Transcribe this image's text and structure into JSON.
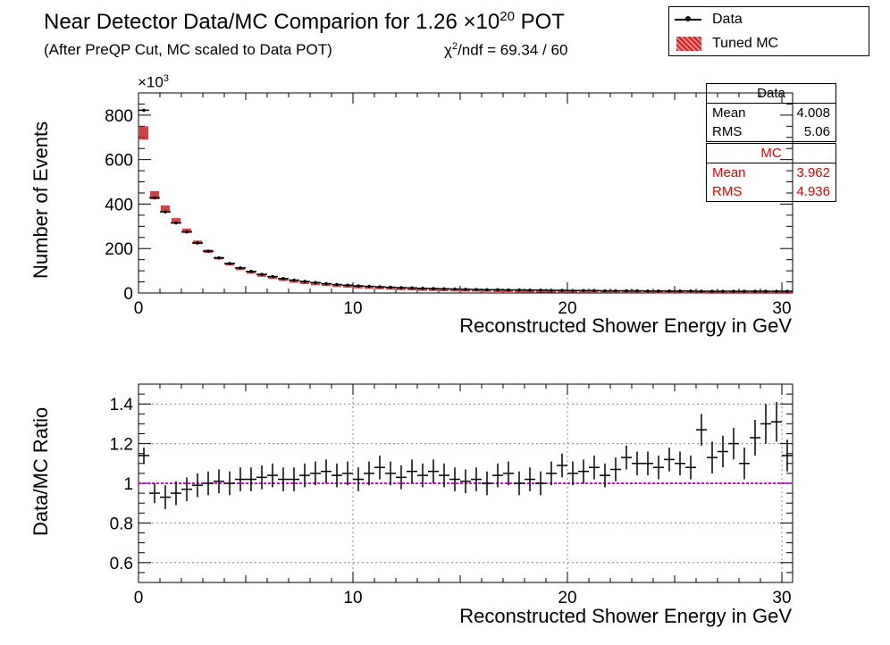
{
  "header": {
    "title_main": "Near Detector Data/MC Comparion for 1.26 ×10",
    "title_exp": "20",
    "title_tail": " POT",
    "subtitle": "(After PreQP Cut, MC scaled to Data POT)",
    "chi_prefix": "χ",
    "chi_sup": "2",
    "chi_text": "/ndf = 69.34 / 60"
  },
  "legend": {
    "data_label": "Data",
    "mc_label": "Tuned MC"
  },
  "stats": {
    "data": {
      "title": "Data",
      "mean_label": "Mean",
      "mean": "4.008",
      "rms_label": "RMS",
      "rms": "5.06"
    },
    "mc": {
      "title": "MC",
      "mean_label": "Mean",
      "mean": "3.962",
      "rms_label": "RMS",
      "rms": "4.936"
    }
  },
  "colors": {
    "data": "#000000",
    "mc": "#cc2222",
    "ratio_line": "#e000e0",
    "grid": "#888888"
  },
  "chart_data": [
    {
      "type": "bar",
      "title": "",
      "xlabel": "Reconstructed Shower Energy in GeV",
      "ylabel": "Number of Events",
      "y_multiplier": "×10",
      "y_multiplier_exp": "3",
      "xlim": [
        0,
        30.5
      ],
      "ylim": [
        0,
        900
      ],
      "xticks": [
        0,
        10,
        20,
        30
      ],
      "yticks": [
        0,
        200,
        400,
        600,
        800
      ],
      "bin_width": 0.5,
      "series": [
        {
          "name": "Data",
          "x": [
            0.25,
            0.75,
            1.25,
            1.75,
            2.25,
            2.75,
            3.25,
            3.75,
            4.25,
            4.75,
            5.25,
            5.75,
            6.25,
            6.75,
            7.25,
            7.75,
            8.25,
            8.75,
            9.25,
            9.75,
            10.25,
            10.75,
            11.25,
            11.75,
            12.25,
            12.75,
            13.25,
            13.75,
            14.25,
            14.75,
            15.25,
            15.75,
            16.25,
            16.75,
            17.25,
            17.75,
            18.25,
            18.75,
            19.25,
            19.75,
            20.25,
            20.75,
            21.25,
            21.75,
            22.25,
            22.75,
            23.25,
            23.75,
            24.25,
            24.75,
            25.25,
            25.75,
            26.25,
            26.75,
            27.25,
            27.75,
            28.25,
            28.75,
            29.25,
            29.75,
            30.25
          ],
          "values": [
            822,
            428,
            365,
            315,
            275,
            225,
            188,
            158,
            133,
            113,
            97,
            84,
            74,
            65,
            58,
            52,
            47,
            42,
            38,
            35,
            32,
            30,
            28,
            26,
            24,
            23,
            21,
            20,
            19,
            18,
            17,
            16,
            15,
            15,
            14,
            14,
            13,
            13,
            12,
            12,
            11,
            11,
            11,
            10,
            10,
            10,
            10,
            9,
            9,
            9,
            9,
            9,
            8,
            8,
            8,
            8,
            8,
            8,
            8,
            8,
            8
          ]
        },
        {
          "name": "Tuned MC",
          "x": [
            0.25,
            0.75,
            1.25,
            1.75,
            2.25,
            2.75,
            3.25,
            3.75,
            4.25,
            4.75,
            5.25,
            5.75,
            6.25,
            6.75,
            7.25,
            7.75,
            8.25,
            8.75,
            9.25,
            9.75,
            10.25,
            10.75,
            11.25,
            11.75,
            12.25,
            12.75,
            13.25,
            13.75,
            14.25,
            14.75,
            15.25,
            15.75,
            16.25,
            16.75,
            17.25,
            17.75,
            18.25,
            18.75,
            19.25,
            19.75,
            20.25,
            20.75,
            21.25,
            21.75,
            22.25,
            22.75,
            23.25,
            23.75,
            24.25,
            24.75,
            25.25,
            25.75,
            26.25,
            26.75,
            27.25,
            27.75,
            28.25,
            28.75,
            29.25,
            29.75,
            30.25
          ],
          "values": [
            720,
            440,
            380,
            325,
            280,
            228,
            188,
            157,
            131,
            111,
            95,
            82,
            72,
            63,
            56,
            50,
            45,
            41,
            37,
            34,
            31,
            29,
            27,
            25,
            23,
            22,
            20,
            19,
            18,
            17,
            16,
            16,
            15,
            14,
            14,
            13,
            13,
            12,
            12,
            11,
            11,
            10,
            10,
            10,
            9,
            9,
            9,
            9,
            8,
            8,
            8,
            8,
            8,
            7,
            7,
            7,
            7,
            7,
            7,
            7,
            7
          ],
          "errors": [
            30,
            18,
            14,
            12,
            10,
            8,
            7,
            6,
            5,
            4,
            4,
            3,
            3,
            3,
            2,
            2,
            2,
            2,
            2,
            2,
            2,
            2,
            2,
            2,
            2,
            2,
            2,
            2,
            2,
            2,
            2,
            2,
            2,
            2,
            2,
            2,
            2,
            2,
            2,
            2,
            2,
            2,
            2,
            2,
            2,
            2,
            2,
            2,
            2,
            2,
            2,
            2,
            2,
            2,
            2,
            2,
            2,
            2,
            2,
            2,
            2
          ]
        }
      ]
    },
    {
      "type": "scatter",
      "title": "",
      "xlabel": "Reconstructed Shower Energy in GeV",
      "ylabel": "Data/MC Ratio",
      "xlim": [
        0,
        30.5
      ],
      "ylim": [
        0.5,
        1.5
      ],
      "xticks": [
        0,
        10,
        20,
        30
      ],
      "yticks": [
        0.6,
        0.8,
        1,
        1.2,
        1.4
      ],
      "grid": true,
      "reference_line": 1.0,
      "bin_width": 0.5,
      "series": [
        {
          "name": "",
          "x": [
            0.25,
            0.75,
            1.25,
            1.75,
            2.25,
            2.75,
            3.25,
            3.75,
            4.25,
            4.75,
            5.25,
            5.75,
            6.25,
            6.75,
            7.25,
            7.75,
            8.25,
            8.75,
            9.25,
            9.75,
            10.25,
            10.75,
            11.25,
            11.75,
            12.25,
            12.75,
            13.25,
            13.75,
            14.25,
            14.75,
            15.25,
            15.75,
            16.25,
            16.75,
            17.25,
            17.75,
            18.25,
            18.75,
            19.25,
            19.75,
            20.25,
            20.75,
            21.25,
            21.75,
            22.25,
            22.75,
            23.25,
            23.75,
            24.25,
            24.75,
            25.25,
            25.75,
            26.25,
            26.75,
            27.25,
            27.75,
            28.25,
            28.75,
            29.25,
            29.75,
            30.25
          ],
          "values": [
            1.14,
            0.95,
            0.93,
            0.95,
            0.97,
            0.99,
            1.0,
            1.01,
            1.0,
            1.02,
            1.02,
            1.03,
            1.04,
            1.02,
            1.02,
            1.04,
            1.05,
            1.06,
            1.04,
            1.05,
            1.02,
            1.05,
            1.08,
            1.05,
            1.03,
            1.06,
            1.04,
            1.06,
            1.04,
            1.02,
            1.01,
            1.02,
            1.0,
            1.04,
            1.05,
            1.0,
            1.02,
            1.0,
            1.05,
            1.09,
            1.05,
            1.06,
            1.08,
            1.04,
            1.07,
            1.13,
            1.1,
            1.1,
            1.08,
            1.12,
            1.1,
            1.08,
            1.27,
            1.13,
            1.16,
            1.2,
            1.1,
            1.23,
            1.3,
            1.31,
            1.14
          ],
          "errors": [
            0.04,
            0.05,
            0.06,
            0.06,
            0.06,
            0.06,
            0.06,
            0.06,
            0.06,
            0.06,
            0.06,
            0.06,
            0.06,
            0.06,
            0.06,
            0.06,
            0.06,
            0.06,
            0.06,
            0.06,
            0.06,
            0.06,
            0.06,
            0.06,
            0.06,
            0.06,
            0.06,
            0.06,
            0.06,
            0.06,
            0.06,
            0.06,
            0.06,
            0.06,
            0.06,
            0.06,
            0.06,
            0.06,
            0.06,
            0.06,
            0.06,
            0.06,
            0.06,
            0.06,
            0.06,
            0.06,
            0.06,
            0.06,
            0.06,
            0.06,
            0.06,
            0.06,
            0.08,
            0.08,
            0.08,
            0.08,
            0.08,
            0.09,
            0.1,
            0.1,
            0.08
          ]
        }
      ]
    }
  ]
}
